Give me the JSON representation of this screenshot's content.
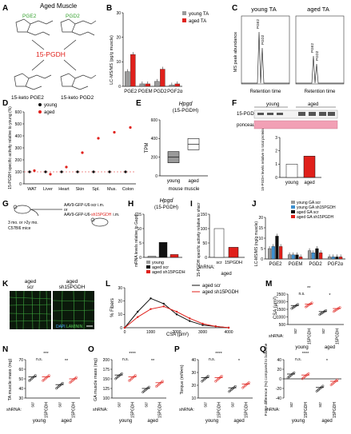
{
  "figure": {
    "panels": {
      "A": {
        "letter": "A",
        "title": "Aged Muscle",
        "pge2": "PGE2",
        "pgd2": "PGD2",
        "enzyme": "15-PGDH",
        "prod1": "15-keto PGE2",
        "prod2": "15-keto PGD2"
      },
      "B": {
        "letter": "B",
        "ylabel": "LC-MS/MS (pg/g muscle)",
        "legend": [
          "young TA",
          "aged TA"
        ],
        "sig": [
          "**",
          "***"
        ]
      },
      "C": {
        "letter": "C",
        "title_left": "young TA",
        "title_right": "aged TA",
        "ylabel": "MS peak abundance",
        "xlabel": "Retention time",
        "peak1": "PGE2",
        "peak2": "PGD2"
      },
      "D": {
        "letter": "D",
        "ylabel": "15-PGDH specific activity relative to young (%)",
        "legend": [
          "young",
          "aged"
        ],
        "sig": [
          "**",
          "*",
          "***",
          "***",
          "*"
        ]
      },
      "E": {
        "letter": "E",
        "title": "Hpgd",
        "subtitle": "(15-PGDH)",
        "ylabel": "TPM",
        "xlabel": "mouse muscle"
      },
      "F": {
        "letter": "F",
        "ylabel": "15-PGDH levels relative to total protein",
        "sig": "*"
      },
      "G": {
        "letter": "G",
        "mice": "C57Bl6 mice",
        "age": "3 mo. or >2y mo.",
        "inj1": "AAV9-GFP-U6-scr i.m.",
        "or": "or",
        "inj2a": "AAV9-GFP-U6-",
        "inj2b": "sh15PGDH",
        "inj2c": "i.m."
      },
      "H": {
        "letter": "H",
        "title": "Hpgd",
        "subtitle": "(15-PGDH)",
        "ylabel": "mRNA levels relative to Gapdh",
        "legend": [
          "young",
          "aged scr",
          "aged sh15PGDH"
        ]
      },
      "I": {
        "letter": "I",
        "ylabel": "15-PGDH specific activity relative to shscr",
        "shrna": "shRNA:",
        "group": "aged",
        "sig": "**"
      },
      "J": {
        "letter": "J",
        "ylabel": "LC-MS/MS (ng/g muscle)",
        "legend": [
          "young GA scr",
          "young GA sh15PGDH",
          "aged GA scr",
          "aged GA sh15PGDH"
        ]
      },
      "K": {
        "letter": "K",
        "left_label": "aged\nscr",
        "right_label": "aged\nsh15PGDH",
        "stain": "DAPI LAMININ"
      },
      "L": {
        "letter": "L",
        "ylabel": "% Fibers",
        "xlabel": "CSA (µm²)",
        "legend": [
          "aged scr",
          "aged sh15PGDH"
        ]
      },
      "M": {
        "letter": "M",
        "ylabel": "CSA (µm²)",
        "sig": [
          "**",
          "n.s.",
          "*"
        ],
        "group_young": "young",
        "group_aged": "aged"
      },
      "N": {
        "letter": "N",
        "ylabel": "TA muscle mass (mg)",
        "sig": [
          "***",
          "n.s.",
          "**"
        ]
      },
      "O": {
        "letter": "O",
        "ylabel": "GA muscle mass (mg)",
        "sig": [
          "****",
          "n.s.",
          "**"
        ]
      },
      "P": {
        "letter": "P",
        "ylabel": "Torque (mN•m)",
        "sig": [
          "****",
          "n.s.",
          "*"
        ]
      },
      "Q": {
        "letter": "Q",
        "ylabel": "Force difference (%) compared to baseline",
        "sig": [
          "****",
          "n.s.",
          "*"
        ]
      }
    },
    "chart_data": [
      {
        "panel": "B",
        "type": "bar",
        "categories": [
          "PGE2",
          "PGEM",
          "PGD2",
          "PGF2α"
        ],
        "series": [
          {
            "name": "young TA",
            "values": [
              6,
              1,
              2,
              0.5
            ]
          },
          {
            "name": "aged TA",
            "values": [
              13,
              1,
              7,
              1
            ]
          }
        ],
        "ylim": [
          0,
          30
        ],
        "yticks": [
          0,
          10,
          20,
          30
        ]
      },
      {
        "panel": "D",
        "type": "scatter",
        "categories": [
          "WAT",
          "Liver",
          "Heart",
          "Skin",
          "Spl.",
          "Mus.",
          "Colon"
        ],
        "series": [
          {
            "name": "young",
            "values": [
              100,
              100,
              100,
              100,
              100,
              100,
              100
            ]
          },
          {
            "name": "aged",
            "values": [
              110,
              80,
              140,
              260,
              380,
              430,
              470
            ]
          }
        ],
        "ylim": [
          0,
          600
        ],
        "yticks": [
          0,
          100,
          200,
          300,
          400,
          500,
          600
        ]
      },
      {
        "panel": "E",
        "type": "box",
        "categories": [
          "young",
          "aged"
        ],
        "values": [
          200,
          340
        ],
        "ylim": [
          0,
          600
        ],
        "yticks": [
          0,
          200,
          400,
          600
        ]
      },
      {
        "panel": "F",
        "type": "bar",
        "categories": [
          "young",
          "aged"
        ],
        "values": [
          1.0,
          1.6
        ],
        "ylim": [
          0,
          3
        ],
        "yticks": [
          0,
          1,
          2,
          3
        ]
      },
      {
        "panel": "H",
        "type": "bar",
        "categories": [
          "young",
          "aged scr",
          "aged sh15PGDH"
        ],
        "values": [
          0.4,
          5.2,
          1.0
        ],
        "ylim": [
          0,
          15
        ],
        "yticks": [
          0,
          5,
          10,
          15
        ]
      },
      {
        "panel": "I",
        "type": "bar",
        "categories": [
          "scr",
          "15PGDH"
        ],
        "values": [
          100,
          35
        ],
        "ylim": [
          0,
          150
        ],
        "yticks": [
          0,
          50,
          100,
          150
        ]
      },
      {
        "panel": "J",
        "type": "bar",
        "categories": [
          "PGE2",
          "PGEM",
          "PGD2",
          "PGF2α"
        ],
        "series": [
          {
            "name": "young GA scr",
            "values": [
              5,
              2,
              4,
              1
            ]
          },
          {
            "name": "young GA sh15PGDH",
            "values": [
              6,
              2,
              3,
              1
            ]
          },
          {
            "name": "aged GA scr",
            "values": [
              11,
              2,
              5,
              1
            ]
          },
          {
            "name": "aged GA sh15PGDH",
            "values": [
              6,
              1,
              3,
              1
            ]
          }
        ],
        "ylim": [
          0,
          20
        ],
        "yticks": [
          0,
          5,
          10,
          15,
          20
        ]
      },
      {
        "panel": "L",
        "type": "line",
        "x": [
          0,
          500,
          1000,
          1500,
          2000,
          2500,
          3000,
          3500,
          4000
        ],
        "series": [
          {
            "name": "aged scr",
            "values": [
              0,
              12,
              22,
              18,
              10,
              5,
              2,
              1,
              0
            ]
          },
          {
            "name": "aged sh15PGDH",
            "values": [
              0,
              8,
              14,
              16,
              12,
              7,
              3,
              1,
              0
            ]
          }
        ],
        "ylim": [
          0,
          30
        ],
        "yticks": [
          0,
          10,
          20,
          30
        ]
      },
      {
        "panel": "M",
        "type": "scatter",
        "categories": [
          "young scr",
          "young 15PGDH",
          "aged scr",
          "aged 15PGDH"
        ],
        "values": [
          1750,
          1850,
          1350,
          1550
        ],
        "ylim": [
          500,
          2500
        ],
        "yticks": [
          500,
          1000,
          1500,
          2000,
          2500
        ]
      },
      {
        "panel": "N",
        "type": "scatter",
        "categories": [
          "young scr",
          "young 15PGDH",
          "aged scr",
          "aged 15PGDH"
        ],
        "values": [
          52,
          52,
          44,
          50
        ],
        "ylim": [
          30,
          70
        ],
        "yticks": [
          30,
          40,
          50,
          60,
          70
        ]
      },
      {
        "panel": "O",
        "type": "scatter",
        "categories": [
          "young scr",
          "young 15PGDH",
          "aged scr",
          "aged 15PGDH"
        ],
        "values": [
          160,
          155,
          125,
          140
        ],
        "ylim": [
          100,
          200
        ],
        "yticks": [
          100,
          125,
          150,
          175,
          200
        ]
      },
      {
        "panel": "P",
        "type": "scatter",
        "categories": [
          "young scr",
          "young 15PGDH",
          "aged scr",
          "aged 15PGDH"
        ],
        "values": [
          26,
          26,
          18,
          21
        ],
        "ylim": [
          10,
          40
        ],
        "yticks": [
          10,
          20,
          30,
          40
        ]
      },
      {
        "panel": "Q",
        "type": "scatter",
        "categories": [
          "young scr",
          "young 15PGDH",
          "aged scr",
          "aged 15PGDH"
        ],
        "values": [
          10,
          8,
          -18,
          -5
        ],
        "ylim": [
          -40,
          40
        ],
        "yticks": [
          -40,
          -20,
          0,
          20,
          40
        ]
      }
    ],
    "colors": {
      "red": "#e0201b",
      "gray": "#9a9a9a",
      "dark": "#333333",
      "black": "#111111",
      "green": "#33a02c",
      "blue": "#3b8fd0",
      "pink": "#f49a9a"
    }
  }
}
